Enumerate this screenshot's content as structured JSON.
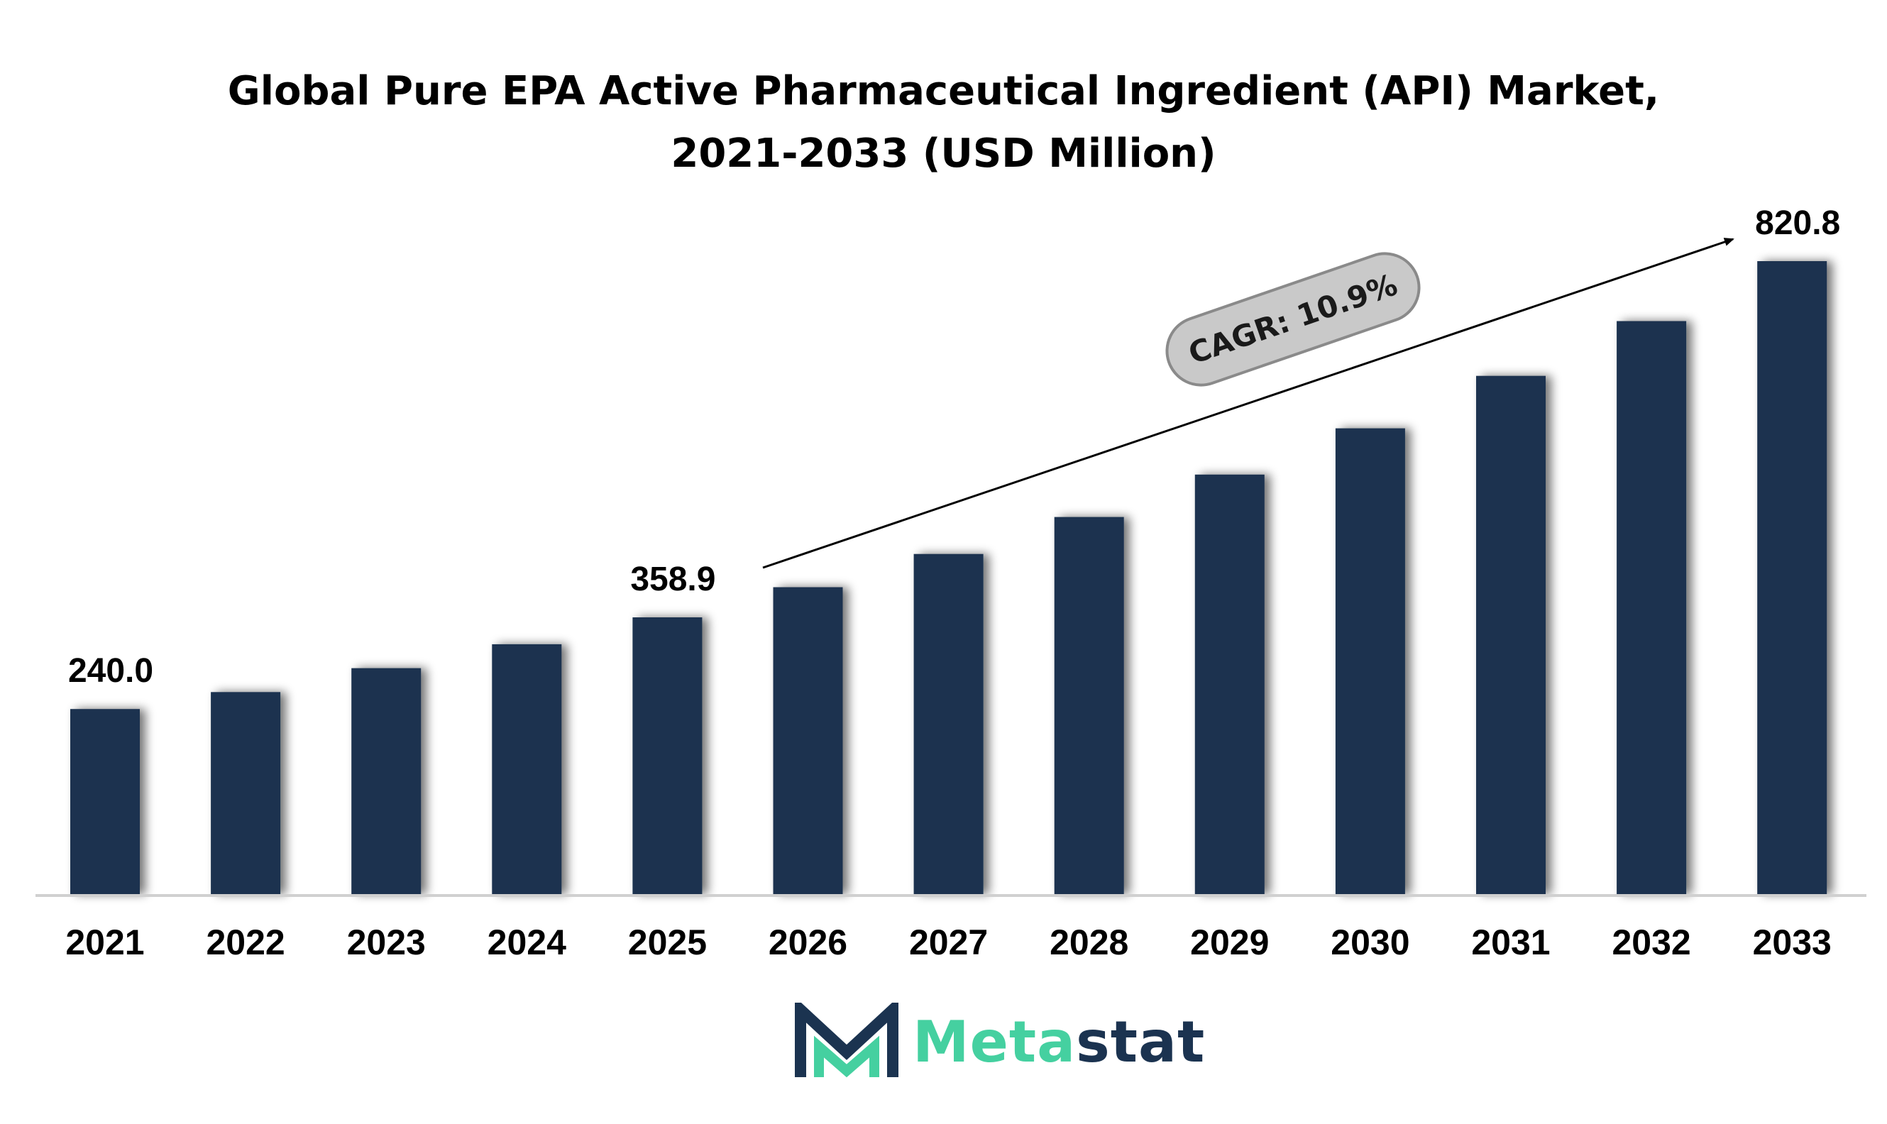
{
  "chart_data": {
    "type": "bar",
    "title_line1": "Global Pure EPA Active Pharmaceutical Ingredient (API) Market,",
    "title_line2": "2021-2033 (USD Million)",
    "categories": [
      "2021",
      "2022",
      "2023",
      "2024",
      "2025",
      "2026",
      "2027",
      "2028",
      "2029",
      "2030",
      "2031",
      "2032",
      "2033"
    ],
    "values": [
      240.0,
      262,
      293,
      324,
      358.9,
      398,
      441,
      489,
      544,
      604,
      672,
      743,
      820.8
    ],
    "data_labels": {
      "0": "240.0",
      "4": "358.9",
      "12": "820.8"
    },
    "annotation": "CAGR: 10.9%",
    "ylim": [
      0,
      840
    ],
    "grid": false,
    "bar_color": "#1b3350"
  },
  "brand": {
    "name_part1": "Meta",
    "name_part2": "stat",
    "colors": {
      "accent": "#45d0a0",
      "dark": "#1b3350"
    }
  }
}
